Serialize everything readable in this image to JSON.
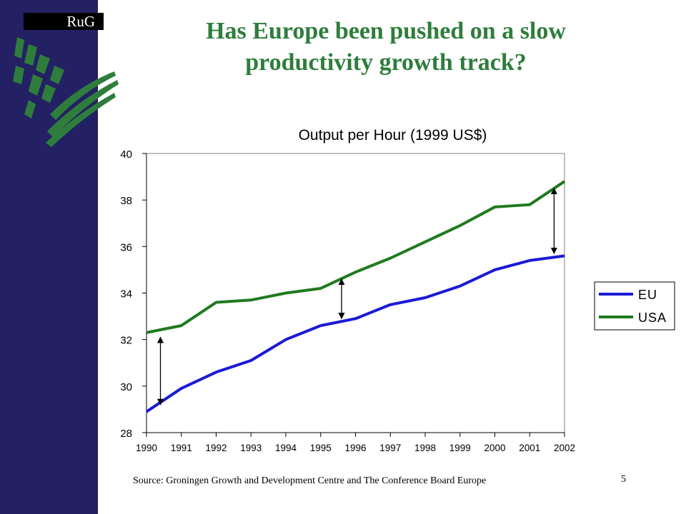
{
  "slide": {
    "logo": "RuG",
    "title_line1": "Has Europe been pushed on a slow",
    "title_line2": "productivity growth track?",
    "source": "Source: Groningen Growth and Development Centre and The Conference Board Europe",
    "page_number": "5",
    "colors": {
      "sidebar": "#232163",
      "title": "#2e7d3c",
      "leaf": "#2e7d3c"
    }
  },
  "chart_data": {
    "type": "line",
    "title": "Output per Hour (1999 US$)",
    "xlabel": "",
    "ylabel": "",
    "x": [
      "1990",
      "1991",
      "1992",
      "1993",
      "1994",
      "1995",
      "1996",
      "1997",
      "1998",
      "1999",
      "2000",
      "2001",
      "2002"
    ],
    "ylim": [
      28,
      40
    ],
    "yticks": [
      28,
      30,
      32,
      34,
      36,
      38,
      40
    ],
    "grid": false,
    "legend_position": "right",
    "series": [
      {
        "name": "EU",
        "color": "#1a1ad4",
        "values": [
          28.9,
          29.9,
          30.6,
          31.1,
          32.0,
          32.6,
          32.9,
          33.5,
          33.8,
          34.3,
          35.0,
          35.4,
          35.6
        ]
      },
      {
        "name": "USA",
        "color": "#1f7a1f",
        "values": [
          32.3,
          32.6,
          33.6,
          33.7,
          34.0,
          34.2,
          34.9,
          35.5,
          36.2,
          36.9,
          37.7,
          37.8,
          38.8
        ]
      }
    ],
    "annotations": [
      {
        "type": "double-arrow",
        "x": 1990.4,
        "y1": 29.2,
        "y2": 32.1
      },
      {
        "type": "double-arrow",
        "x": 1995.6,
        "y1": 32.9,
        "y2": 34.6
      },
      {
        "type": "double-arrow",
        "x": 2001.7,
        "y1": 35.7,
        "y2": 38.5
      }
    ]
  }
}
